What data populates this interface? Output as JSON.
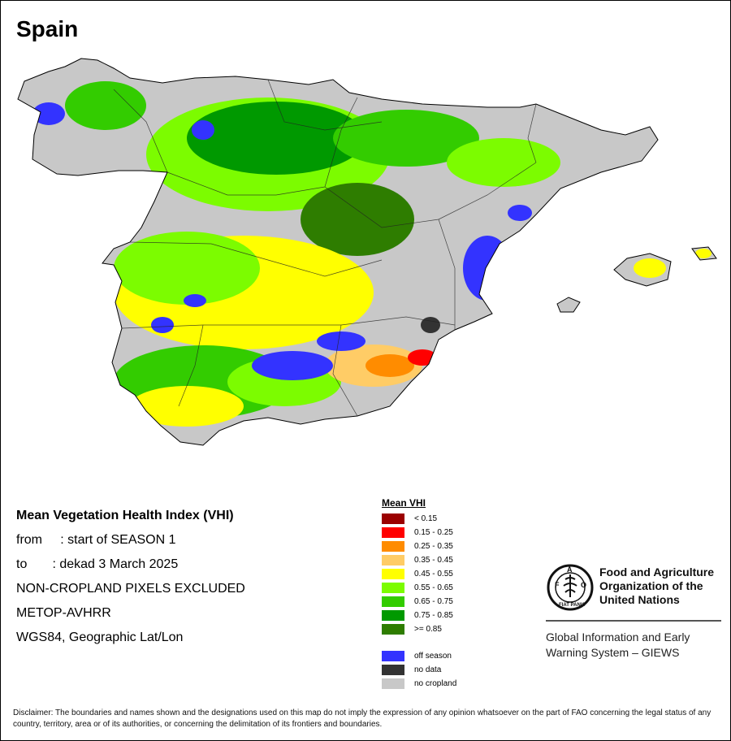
{
  "map": {
    "title": "Spain",
    "info_lines": {
      "heading": "Mean Vegetation Health Index (VHI)",
      "from": "from     : start of SEASON 1",
      "to": "to       : dekad 3 March 2025",
      "excluded": "NON-CROPLAND PIXELS EXCLUDED",
      "sensor": "METOP-AVHRR",
      "projection": "WGS84, Geographic Lat/Lon"
    },
    "legend": {
      "title": "Mean VHI",
      "classes": [
        {
          "label": "< 0.15",
          "color": "#9b0000"
        },
        {
          "label": "0.15 - 0.25",
          "color": "#ff0000"
        },
        {
          "label": "0.25 - 0.35",
          "color": "#ff8c00"
        },
        {
          "label": "0.35 - 0.45",
          "color": "#ffcc66"
        },
        {
          "label": "0.45 - 0.55",
          "color": "#ffff00"
        },
        {
          "label": "0.55 - 0.65",
          "color": "#7cfc00"
        },
        {
          "label": "0.65 - 0.75",
          "color": "#33cc00"
        },
        {
          "label": "0.75 - 0.85",
          "color": "#009900"
        },
        {
          "label": ">= 0.85",
          "color": "#2e7d00"
        }
      ],
      "other": [
        {
          "label": "off season",
          "color": "#3333ff"
        },
        {
          "label": "no data",
          "color": "#333333"
        },
        {
          "label": "no cropland",
          "color": "#c8c8c8"
        }
      ]
    },
    "land_color": "#c8c8c8"
  },
  "org": {
    "name": "Food and Agriculture Organization of the United Nations",
    "giews": "Global Information and Early Warning System – GIEWS",
    "logo_letters": "FAO",
    "logo_motto": "FIAT PANIS"
  },
  "disclaimer": "Disclaimer: The boundaries and names shown and the designations used on this map do not imply the expression of any opinion whatsoever on the part of FAO concerning the legal status of any country, territory, area or of its authorities, or concerning the delimitation of its frontiers and boundaries."
}
